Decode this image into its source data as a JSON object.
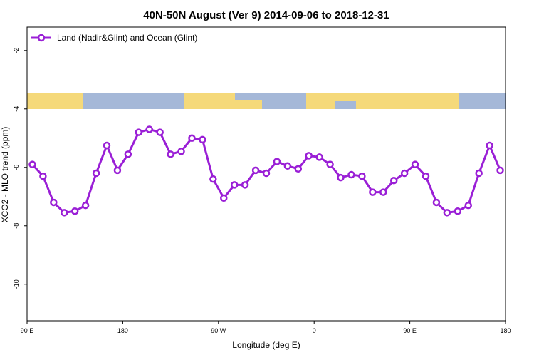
{
  "chart_data": {
    "type": "line",
    "title": "40N-50N August (Ver 9)   2014-09-06 to 2018-12-31",
    "x_label": "Longitude (deg E)",
    "y_label": "XCO2 - MLO trend (ppm)",
    "x": [
      95,
      105,
      115,
      125,
      135,
      145,
      155,
      165,
      175,
      185,
      195,
      205,
      215,
      225,
      235,
      245,
      255,
      265,
      275,
      285,
      295,
      305,
      315,
      325,
      335,
      345,
      355,
      365,
      375,
      385,
      395,
      405,
      415,
      425,
      435,
      445,
      455,
      465,
      475,
      485,
      495,
      505,
      515,
      525,
      535
    ],
    "series": [
      {
        "name": "Land (Nadir&Glint) and Ocean (Glint)",
        "color": "#9a1fd6",
        "values": [
          -5.9,
          -6.3,
          -7.2,
          -7.55,
          -7.5,
          -7.3,
          -6.2,
          -5.25,
          -6.1,
          -5.55,
          -4.8,
          -4.7,
          -4.8,
          -5.55,
          -5.45,
          -5.0,
          -5.05,
          -6.4,
          -7.05,
          -6.6,
          -6.6,
          -6.1,
          -6.2,
          -5.8,
          -5.95,
          -6.05,
          -5.6,
          -5.65,
          -5.9,
          -6.35,
          -6.25,
          -6.3,
          -6.85,
          -6.85,
          -6.45,
          -6.2,
          -5.9,
          -6.3,
          -7.2,
          -7.55,
          -7.5,
          -7.3,
          -6.2,
          -5.25,
          -6.1
        ]
      }
    ],
    "xlim": [
      90,
      540
    ],
    "xticks": [
      {
        "value": 90,
        "label": "90 E"
      },
      {
        "value": 180,
        "label": "180"
      },
      {
        "value": 270,
        "label": "90 W"
      },
      {
        "value": 360,
        "label": "0"
      },
      {
        "value": 450,
        "label": "90 E"
      },
      {
        "value": 540,
        "label": "180"
      }
    ],
    "ylim": [
      -11.25,
      -1.2
    ],
    "yticks": [
      -10,
      -8,
      -6,
      -4,
      -2
    ],
    "legend": "top-left"
  }
}
